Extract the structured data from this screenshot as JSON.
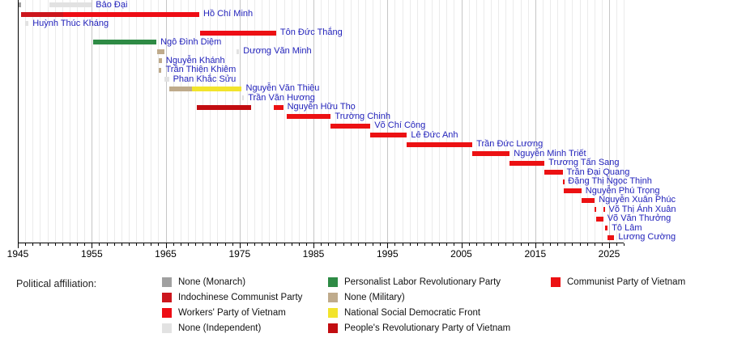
{
  "chart_data": {
    "type": "bar",
    "subtype": "timeline-gantt",
    "description": "Timeline of Vietnamese heads of state colored by political affiliation",
    "label_color": "#2222bb",
    "x_axis": {
      "start_year": 1945,
      "end_year": 2027,
      "tick_label_years": [
        1945,
        1955,
        1965,
        1975,
        1985,
        1995,
        2005,
        2015,
        2025
      ],
      "minor_tick_step": 1,
      "major_tick_step": 10,
      "grid": true
    },
    "parties": {
      "none_monarch": {
        "label": "None (Monarch)",
        "color": "#a0a0a0"
      },
      "indochinese_communist": {
        "label": "Indochinese Communist Party",
        "color": "#cc161d"
      },
      "workers_party": {
        "label": "Workers' Party of Vietnam",
        "color": "#ee0d15"
      },
      "none_independent": {
        "label": "None (Independent)",
        "color": "#e2e2e2"
      },
      "personalist_labor": {
        "label": "Personalist Labor Revolutionary Party",
        "color": "#2e8b45"
      },
      "none_military": {
        "label": "None (Military)",
        "color": "#bfab8c"
      },
      "nsdf": {
        "label": "National Social Democratic Front",
        "color": "#f2e42c"
      },
      "peoples_revolutionary": {
        "label": "People's Revolutionary Party of Vietnam",
        "color": "#c20d11"
      },
      "cpv": {
        "label": "Communist Party of Vietnam",
        "color": "#ec1113"
      }
    },
    "legend": {
      "title": "Political affiliation:",
      "columns": [
        [
          "none_monarch",
          "indochinese_communist",
          "workers_party",
          "none_independent"
        ],
        [
          "personalist_labor",
          "none_military",
          "nsdf",
          "peoples_revolutionary"
        ],
        [
          "cpv"
        ]
      ]
    },
    "people": [
      {
        "name": "Bảo Đại",
        "segments": [
          {
            "start": 1945.0,
            "end": 1945.45,
            "party": "none_monarch"
          },
          {
            "start": 1949.3,
            "end": 1955.0,
            "party": "none_independent"
          }
        ]
      },
      {
        "name": "Hồ Chí Minh",
        "segments": [
          {
            "start": 1945.45,
            "end": 1951.1,
            "party": "indochinese_communist"
          },
          {
            "start": 1951.1,
            "end": 1969.55,
            "party": "workers_party"
          }
        ]
      },
      {
        "name": "Huỳnh Thúc Kháng",
        "segments": [
          {
            "start": 1946.0,
            "end": 1946.45,
            "party": "none_independent"
          }
        ]
      },
      {
        "name": "Tôn Đức Thắng",
        "segments": [
          {
            "start": 1969.65,
            "end": 1976.5,
            "party": "workers_party"
          },
          {
            "start": 1976.5,
            "end": 1979.95,
            "party": "cpv"
          }
        ]
      },
      {
        "name": "Ngô Đình Diệm",
        "segments": [
          {
            "start": 1955.2,
            "end": 1963.75,
            "party": "personalist_labor"
          }
        ]
      },
      {
        "name": "Dương Văn Minh",
        "segments": [
          {
            "start": 1963.85,
            "end": 1964.85,
            "party": "none_military"
          },
          {
            "start": 1974.6,
            "end": 1974.95,
            "party": "none_independent"
          }
        ]
      },
      {
        "name": "Nguyễn Khánh",
        "segments": [
          {
            "start": 1964.05,
            "end": 1964.5,
            "party": "none_military"
          }
        ]
      },
      {
        "name": "Trần Thiện Khiêm",
        "segments": [
          {
            "start": 1964.1,
            "end": 1964.45,
            "party": "none_military"
          }
        ]
      },
      {
        "name": "Phan Khắc Sửu",
        "segments": [
          {
            "start": 1964.8,
            "end": 1965.45,
            "party": "none_independent"
          }
        ]
      },
      {
        "name": "Nguyễn Văn Thiệu",
        "segments": [
          {
            "start": 1965.45,
            "end": 1968.6,
            "party": "none_military"
          },
          {
            "start": 1968.6,
            "end": 1975.3,
            "party": "nsdf"
          }
        ]
      },
      {
        "name": "Trần Văn Hương",
        "segments": [
          {
            "start": 1975.3,
            "end": 1975.6,
            "party": "none_independent"
          }
        ]
      },
      {
        "name": "Nguyễn Hữu Thọ",
        "segments": [
          {
            "start": 1969.25,
            "end": 1976.6,
            "party": "peoples_revolutionary"
          },
          {
            "start": 1979.6,
            "end": 1980.9,
            "party": "cpv"
          }
        ]
      },
      {
        "name": "Trường Chinh",
        "segments": [
          {
            "start": 1981.35,
            "end": 1987.35,
            "party": "cpv"
          }
        ]
      },
      {
        "name": "Võ Chí Công",
        "segments": [
          {
            "start": 1987.35,
            "end": 1992.7,
            "party": "cpv"
          }
        ]
      },
      {
        "name": "Lê Đức Anh",
        "segments": [
          {
            "start": 1992.7,
            "end": 1997.65,
            "party": "cpv"
          }
        ]
      },
      {
        "name": "Trần Đức Lương",
        "segments": [
          {
            "start": 1997.65,
            "end": 2006.5,
            "party": "cpv"
          }
        ]
      },
      {
        "name": "Nguyễn Minh Triết",
        "segments": [
          {
            "start": 2006.5,
            "end": 2011.55,
            "party": "cpv"
          }
        ]
      },
      {
        "name": "Trương Tấn Sang",
        "segments": [
          {
            "start": 2011.55,
            "end": 2016.25,
            "party": "cpv"
          }
        ]
      },
      {
        "name": "Trần Đại Quang",
        "segments": [
          {
            "start": 2016.25,
            "end": 2018.7,
            "party": "cpv"
          }
        ]
      },
      {
        "name": "Đặng Thị Ngọc Thịnh",
        "segments": [
          {
            "start": 2018.7,
            "end": 2018.9,
            "party": "cpv"
          }
        ]
      },
      {
        "name": "Nguyễn Phú Trọng",
        "segments": [
          {
            "start": 2018.9,
            "end": 2021.25,
            "party": "cpv"
          }
        ]
      },
      {
        "name": "Nguyễn Xuân Phúc",
        "segments": [
          {
            "start": 2021.25,
            "end": 2023.05,
            "party": "cpv"
          }
        ]
      },
      {
        "name": "Võ Thị Ánh Xuân",
        "segments": [
          {
            "start": 2023.05,
            "end": 2023.25,
            "party": "cpv"
          },
          {
            "start": 2024.2,
            "end": 2024.4,
            "party": "cpv"
          }
        ]
      },
      {
        "name": "Võ Văn Thưởng",
        "segments": [
          {
            "start": 2023.25,
            "end": 2024.2,
            "party": "cpv"
          }
        ]
      },
      {
        "name": "Tô Lâm",
        "segments": [
          {
            "start": 2024.4,
            "end": 2024.8,
            "party": "cpv"
          }
        ]
      },
      {
        "name": "Lương Cường",
        "segments": [
          {
            "start": 2024.8,
            "end": 2025.7,
            "party": "cpv"
          }
        ]
      }
    ]
  }
}
